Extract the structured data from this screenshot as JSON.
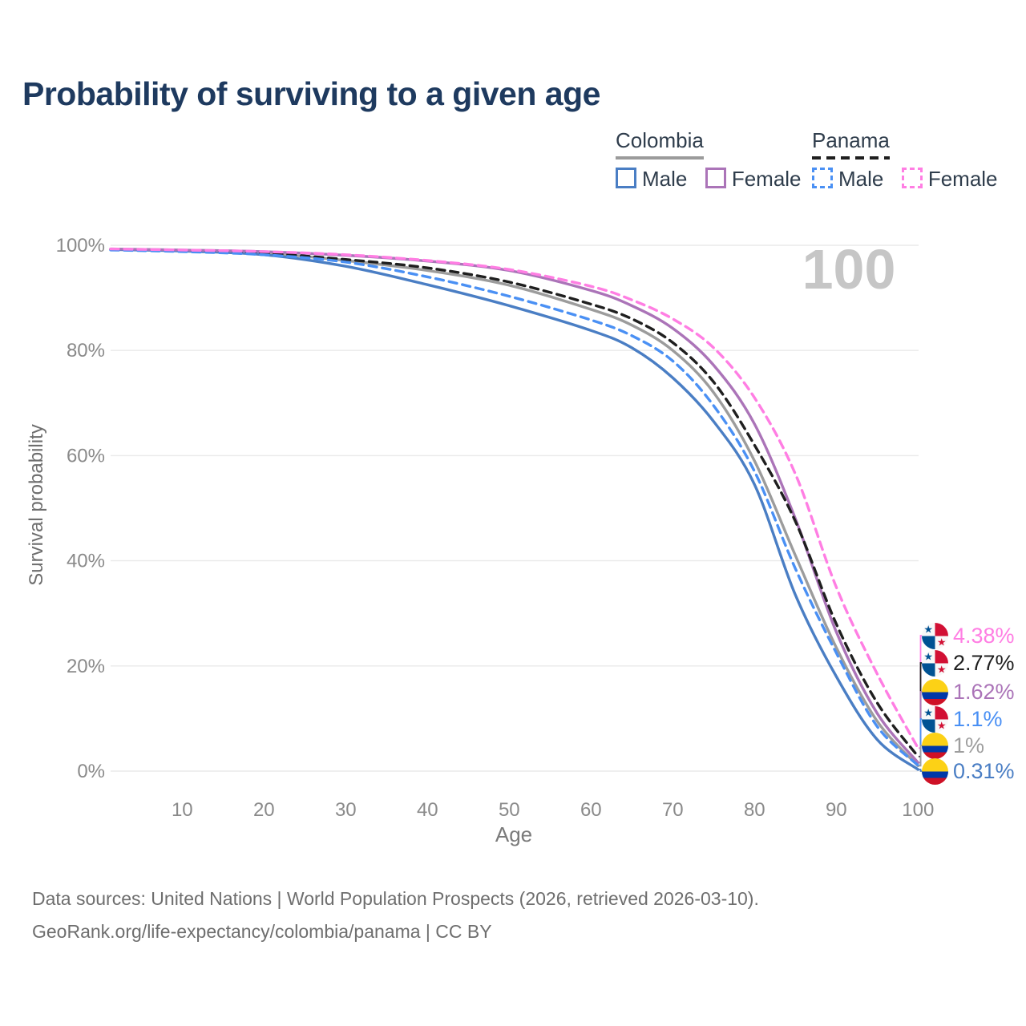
{
  "title": "Probability of surviving to a given age",
  "legend": {
    "groups": [
      {
        "label": "Colombia",
        "underline": "solid",
        "underline_color": "#9b9b9b",
        "items": [
          {
            "label": "Male",
            "color": "#4a7ec4",
            "dash": "solid"
          },
          {
            "label": "Female",
            "color": "#ab74b8",
            "dash": "solid"
          }
        ]
      },
      {
        "label": "Panama",
        "underline": "dashed",
        "underline_color": "#1f1f1f",
        "items": [
          {
            "label": "Male",
            "color": "#4a90f4",
            "dash": "dashed"
          },
          {
            "label": "Female",
            "color": "#ff7ee3",
            "dash": "dashed"
          }
        ]
      }
    ]
  },
  "chart_data": {
    "type": "line",
    "title": "Probability of surviving to a given age",
    "xlabel": "Age",
    "ylabel": "Survival probability",
    "xlim": [
      0,
      100
    ],
    "ylim": [
      0,
      100
    ],
    "grid": "horizontal-only",
    "legend_position": "top-right",
    "watermark": "100",
    "x": [
      0,
      10,
      20,
      30,
      40,
      50,
      60,
      65,
      70,
      75,
      80,
      85,
      90,
      95,
      100
    ],
    "xticks": [
      10,
      20,
      30,
      40,
      50,
      60,
      70,
      80,
      90,
      100
    ],
    "ytick_values": [
      0,
      20,
      40,
      60,
      80,
      100
    ],
    "ytick_labels": [
      "0%",
      "20%",
      "40%",
      "60%",
      "80%",
      "100%"
    ],
    "series": [
      {
        "name": "Colombia",
        "sex": "Both",
        "id": "colombia-all",
        "color": "#9c9c9c",
        "dash": "solid",
        "flag": "colombia",
        "end_label": "1%",
        "end_label_color": "#9e9e9e",
        "end_value": 1.0,
        "values": [
          99.2,
          99.0,
          98.5,
          97.1,
          95.2,
          92.4,
          87.8,
          84.8,
          80.0,
          72.0,
          59.0,
          41.0,
          23.5,
          9.5,
          1.0
        ]
      },
      {
        "name": "Colombia Male",
        "sex": "Male",
        "id": "colombia-male",
        "color": "#4a7ec4",
        "dash": "solid",
        "flag": "colombia",
        "end_label": "0.31%",
        "end_label_color": "#4a7ec4",
        "end_value": 0.31,
        "values": [
          99.2,
          98.9,
          98.2,
          96.0,
          92.5,
          88.5,
          83.8,
          80.5,
          74.8,
          66.5,
          54.5,
          33.5,
          18.0,
          6.0,
          0.31
        ]
      },
      {
        "name": "Colombia Female",
        "sex": "Female",
        "id": "colombia-female",
        "color": "#ab74b8",
        "dash": "solid",
        "flag": "colombia",
        "end_label": "1.62%",
        "end_label_color": "#ab74b8",
        "end_value": 1.62,
        "values": [
          99.3,
          99.1,
          98.8,
          98.1,
          97.0,
          95.2,
          91.4,
          88.5,
          84.2,
          77.2,
          66.0,
          48.0,
          26.5,
          11.0,
          1.62
        ]
      },
      {
        "name": "Panama",
        "sex": "Both",
        "id": "panama-all",
        "color": "#1f1f1f",
        "dash": "dashed",
        "flag": "panama",
        "end_label": "2.77%",
        "end_label_color": "#1f1f1f",
        "end_value": 2.77,
        "values": [
          99.2,
          99.0,
          98.5,
          97.3,
          95.7,
          93.0,
          88.8,
          86.0,
          81.5,
          74.0,
          62.0,
          47.5,
          28.0,
          13.0,
          2.77
        ]
      },
      {
        "name": "Panama Male",
        "sex": "Male",
        "id": "panama-male",
        "color": "#4a90f4",
        "dash": "dashed",
        "flag": "panama",
        "end_label": "1.1%",
        "end_label_color": "#4a90f4",
        "end_value": 1.1,
        "values": [
          99.1,
          98.8,
          98.2,
          96.8,
          94.0,
          90.3,
          85.8,
          82.8,
          78.0,
          69.5,
          57.0,
          38.5,
          22.5,
          8.5,
          1.1
        ]
      },
      {
        "name": "Panama Female",
        "sex": "Female",
        "id": "panama-female",
        "color": "#ff7ee3",
        "dash": "dashed",
        "flag": "panama",
        "end_label": "4.38%",
        "end_label_color": "#ff7ee3",
        "end_value": 4.38,
        "values": [
          99.3,
          99.1,
          98.8,
          98.2,
          97.1,
          95.4,
          92.2,
          89.6,
          86.0,
          80.5,
          71.0,
          56.5,
          35.0,
          18.5,
          4.38
        ]
      }
    ]
  },
  "footer": {
    "line1": "Data sources: United Nations | World Population Prospects (2026, retrieved 2026-03-10).",
    "line2": "GeoRank.org/life-expectancy/colombia/panama | CC BY"
  }
}
